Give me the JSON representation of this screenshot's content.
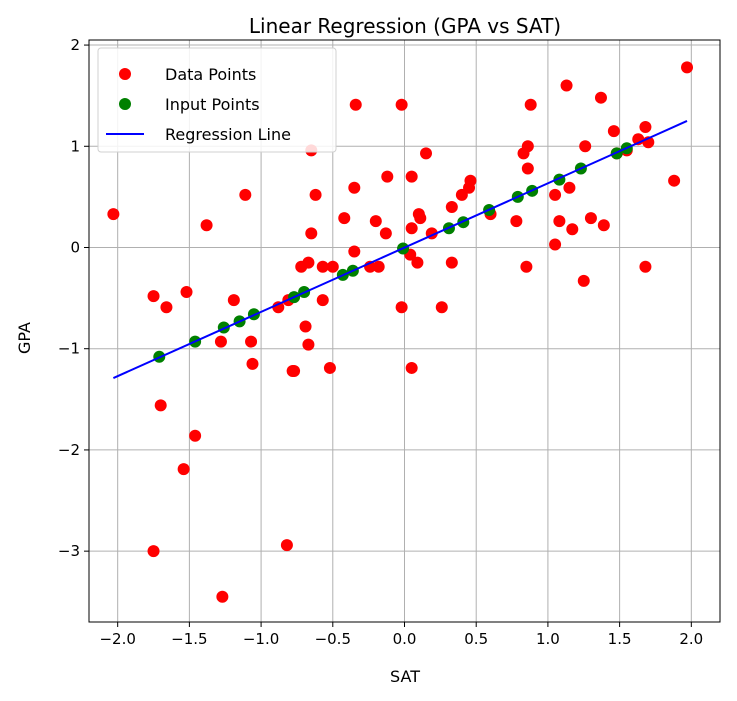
{
  "chart_data": {
    "type": "scatter",
    "title": "Linear Regression (GPA vs SAT)",
    "xlabel": "SAT",
    "ylabel": "GPA",
    "xlim": [
      -2.2,
      2.2
    ],
    "ylim": [
      -3.7,
      2.05
    ],
    "x_ticks": [
      -2.0,
      -1.5,
      -1.0,
      -0.5,
      0.0,
      0.5,
      1.0,
      1.5,
      2.0
    ],
    "x_tick_labels": [
      "−2.0",
      "−1.5",
      "−1.0",
      "−0.5",
      "0.0",
      "0.5",
      "1.0",
      "1.5",
      "2.0"
    ],
    "y_ticks": [
      -3,
      -2,
      -1,
      0,
      1,
      2
    ],
    "y_tick_labels": [
      "−3",
      "−2",
      "−1",
      "0",
      "1",
      "2"
    ],
    "grid": true,
    "legend_position": "top-left",
    "series": [
      {
        "name": "Data Points",
        "kind": "scatter",
        "color": "#ff0000",
        "points": [
          [
            -2.03,
            0.33
          ],
          [
            -1.75,
            -0.48
          ],
          [
            -1.75,
            -3.0
          ],
          [
            -1.7,
            -1.56
          ],
          [
            -1.66,
            -0.59
          ],
          [
            -1.54,
            -2.19
          ],
          [
            -1.52,
            -0.44
          ],
          [
            -1.46,
            -1.86
          ],
          [
            -1.38,
            0.22
          ],
          [
            -1.28,
            -0.93
          ],
          [
            -1.27,
            -3.45
          ],
          [
            -1.19,
            -0.52
          ],
          [
            -1.11,
            0.52
          ],
          [
            -1.07,
            -0.93
          ],
          [
            -1.06,
            -1.15
          ],
          [
            -0.88,
            -0.59
          ],
          [
            -0.82,
            -2.94
          ],
          [
            -0.81,
            -0.52
          ],
          [
            -0.78,
            -1.22
          ],
          [
            -0.77,
            -1.22
          ],
          [
            -0.72,
            -0.19
          ],
          [
            -0.69,
            -0.78
          ],
          [
            -0.67,
            -0.96
          ],
          [
            -0.67,
            -0.15
          ],
          [
            -0.65,
            0.96
          ],
          [
            -0.65,
            0.14
          ],
          [
            -0.62,
            0.52
          ],
          [
            -0.57,
            -0.52
          ],
          [
            -0.57,
            -0.19
          ],
          [
            -0.52,
            -1.19
          ],
          [
            -0.5,
            -0.19
          ],
          [
            -0.42,
            0.29
          ],
          [
            -0.35,
            0.59
          ],
          [
            -0.35,
            -0.04
          ],
          [
            -0.34,
            1.41
          ],
          [
            -0.24,
            -0.19
          ],
          [
            -0.2,
            0.26
          ],
          [
            -0.18,
            -0.19
          ],
          [
            -0.13,
            0.14
          ],
          [
            -0.12,
            0.7
          ],
          [
            -0.02,
            -0.59
          ],
          [
            -0.02,
            1.41
          ],
          [
            0.04,
            -0.07
          ],
          [
            0.05,
            0.7
          ],
          [
            0.05,
            -1.19
          ],
          [
            0.05,
            0.19
          ],
          [
            0.09,
            -0.15
          ],
          [
            0.1,
            0.33
          ],
          [
            0.11,
            0.29
          ],
          [
            0.15,
            0.93
          ],
          [
            0.19,
            0.14
          ],
          [
            0.26,
            -0.59
          ],
          [
            0.33,
            0.4
          ],
          [
            0.33,
            -0.15
          ],
          [
            0.4,
            0.52
          ],
          [
            0.45,
            0.59
          ],
          [
            0.46,
            0.66
          ],
          [
            0.6,
            0.33
          ],
          [
            0.78,
            0.26
          ],
          [
            0.83,
            0.93
          ],
          [
            0.85,
            -0.19
          ],
          [
            0.86,
            0.78
          ],
          [
            0.86,
            1.0
          ],
          [
            0.88,
            1.41
          ],
          [
            1.05,
            0.52
          ],
          [
            1.05,
            0.03
          ],
          [
            1.08,
            0.26
          ],
          [
            1.13,
            1.6
          ],
          [
            1.15,
            0.59
          ],
          [
            1.17,
            0.18
          ],
          [
            1.25,
            -0.33
          ],
          [
            1.26,
            1.0
          ],
          [
            1.3,
            0.29
          ],
          [
            1.37,
            1.48
          ],
          [
            1.39,
            0.22
          ],
          [
            1.46,
            1.15
          ],
          [
            1.48,
            0.93
          ],
          [
            1.55,
            0.96
          ],
          [
            1.63,
            1.07
          ],
          [
            1.68,
            1.19
          ],
          [
            1.68,
            -0.19
          ],
          [
            1.7,
            1.04
          ],
          [
            1.88,
            0.66
          ],
          [
            1.97,
            1.78
          ]
        ]
      },
      {
        "name": "Input Points",
        "kind": "scatter",
        "color": "#008000",
        "points": [
          [
            -1.71,
            -1.08
          ],
          [
            -1.46,
            -0.93
          ],
          [
            -1.26,
            -0.79
          ],
          [
            -1.15,
            -0.73
          ],
          [
            -1.05,
            -0.66
          ],
          [
            -0.77,
            -0.49
          ],
          [
            -0.7,
            -0.44
          ],
          [
            -0.43,
            -0.27
          ],
          [
            -0.36,
            -0.23
          ],
          [
            -0.01,
            -0.01
          ],
          [
            0.31,
            0.19
          ],
          [
            0.41,
            0.25
          ],
          [
            0.59,
            0.37
          ],
          [
            0.79,
            0.5
          ],
          [
            0.89,
            0.56
          ],
          [
            1.08,
            0.67
          ],
          [
            1.23,
            0.78
          ],
          [
            1.48,
            0.93
          ],
          [
            1.55,
            0.98
          ]
        ]
      },
      {
        "name": "Regression Line",
        "kind": "line",
        "color": "#0000ff",
        "points": [
          [
            -2.03,
            -1.29
          ],
          [
            1.97,
            1.25
          ]
        ]
      }
    ]
  }
}
